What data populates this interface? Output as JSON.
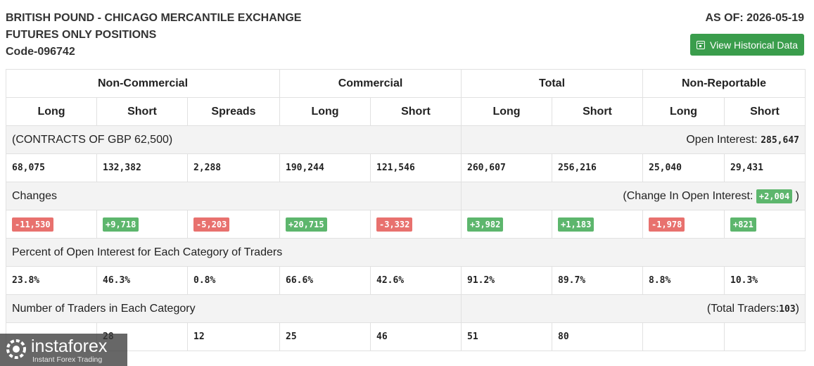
{
  "header": {
    "title_line1": "BRITISH POUND - CHICAGO MERCANTILE EXCHANGE",
    "title_line2": "FUTURES ONLY POSITIONS",
    "code": "Code-096742",
    "as_of": "AS OF: 2026-05-19",
    "historical_button": "View Historical Data"
  },
  "table": {
    "groups": [
      "Non-Commercial",
      "Commercial",
      "Total",
      "Non-Reportable"
    ],
    "subheaders": [
      "Long",
      "Short",
      "Spreads",
      "Long",
      "Short",
      "Long",
      "Short",
      "Long",
      "Short"
    ],
    "contracts_label": "(CONTRACTS OF GBP 62,500)",
    "open_interest_label": "Open Interest:",
    "open_interest_value": "285,647",
    "positions": [
      "68,075",
      "132,382",
      "2,288",
      "190,244",
      "121,546",
      "260,607",
      "256,216",
      "25,040",
      "29,431"
    ],
    "changes_label": "Changes",
    "change_oi_prefix": "(Change In Open Interest:",
    "change_oi_value": "+2,004",
    "change_oi_suffix": ")",
    "changes": [
      {
        "value": "-11,530",
        "dir": "neg"
      },
      {
        "value": "+9,718",
        "dir": "pos"
      },
      {
        "value": "-5,203",
        "dir": "neg"
      },
      {
        "value": "+20,715",
        "dir": "pos"
      },
      {
        "value": "-3,332",
        "dir": "neg"
      },
      {
        "value": "+3,982",
        "dir": "pos"
      },
      {
        "value": "+1,183",
        "dir": "pos"
      },
      {
        "value": "-1,978",
        "dir": "neg"
      },
      {
        "value": "+821",
        "dir": "pos"
      }
    ],
    "percent_label": "Percent of Open Interest for Each Category of Traders",
    "percents": [
      "23.8%",
      "46.3%",
      "0.8%",
      "66.6%",
      "42.6%",
      "91.2%",
      "89.7%",
      "8.8%",
      "10.3%"
    ],
    "traders_label": "Number of Traders in Each Category",
    "total_traders_prefix": "(Total Traders:",
    "total_traders_value": "103",
    "total_traders_suffix": ")",
    "traders": [
      "",
      "28",
      "12",
      "25",
      "46",
      "51",
      "80",
      "",
      ""
    ]
  },
  "watermark": {
    "brand": "instaforex",
    "tagline": "Instant Forex Trading",
    "icon": "instaforex-logo-icon"
  },
  "colors": {
    "button_green": "#3a9d4c",
    "negative_badge": "#e8716e",
    "positive_badge": "#5db66d",
    "section_row_bg": "#f3f3f3"
  }
}
